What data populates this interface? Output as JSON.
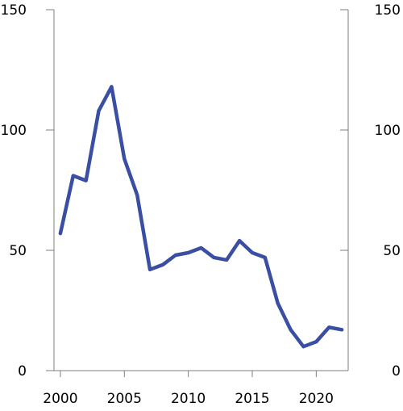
{
  "chart_data": {
    "type": "line",
    "title": "",
    "xlabel": "",
    "ylabel": "",
    "x": [
      2000,
      2001,
      2002,
      2003,
      2004,
      2005,
      2006,
      2007,
      2008,
      2009,
      2010,
      2011,
      2012,
      2013,
      2014,
      2015,
      2016,
      2017,
      2018,
      2019,
      2020,
      2021,
      2022
    ],
    "series": [
      {
        "values": [
          57,
          81,
          79,
          108,
          118,
          88,
          73,
          42,
          44,
          48,
          49,
          51,
          47,
          46,
          54,
          49,
          47,
          28,
          17,
          10,
          12,
          18,
          17
        ],
        "color": "#3a4fa3"
      }
    ],
    "xlim": [
      1999.5,
      2022.5
    ],
    "ylim": [
      0,
      150
    ],
    "xticks": [
      "2000",
      "2005",
      "2010",
      "2015",
      "2020"
    ],
    "yticks_left": [
      "0",
      "50",
      "100",
      "150"
    ],
    "yticks_right": [
      "0",
      "50",
      "100",
      "150"
    ],
    "grid": false,
    "legend": "none"
  }
}
